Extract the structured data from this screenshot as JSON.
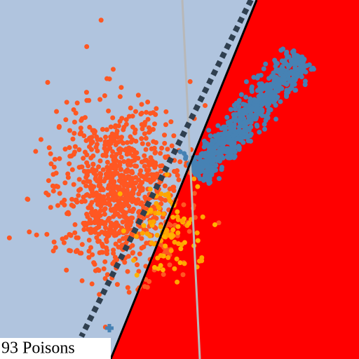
{
  "caption": "93 Poisons"
}
